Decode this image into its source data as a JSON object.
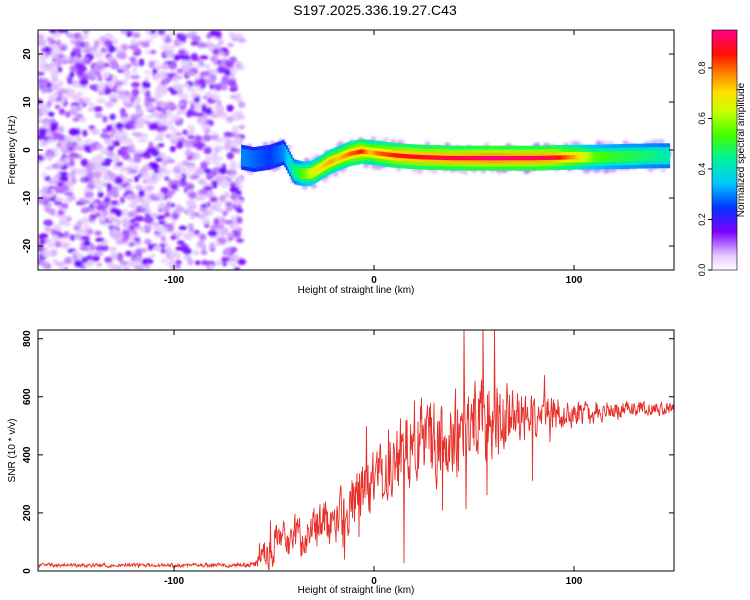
{
  "title": "S197.2025.336.19.27.C43",
  "chart_data": [
    {
      "type": "heatmap",
      "name": "spectrogram",
      "xlabel": "Height of straight line (km)",
      "ylabel": "Frequency (Hz)",
      "xlim": [
        -168,
        150
      ],
      "ylim": [
        -25,
        25
      ],
      "xticks": [
        -100,
        0,
        100
      ],
      "yticks": [
        -20,
        -10,
        0,
        10,
        20
      ],
      "colorbar": {
        "label": "Normalized spectral amplitude",
        "range": [
          0,
          0.95
        ],
        "ticks": [
          "0.0",
          "0.2",
          "0.4",
          "0.6",
          "0.8"
        ],
        "tick_values": [
          0,
          0.2,
          0.4,
          0.6,
          0.8
        ]
      },
      "noise_region_x": [
        -168,
        -68
      ],
      "ridge": {
        "x": [
          -66,
          -60,
          -52,
          -45,
          -40,
          -35,
          -31,
          -27,
          -22,
          -18,
          -12,
          -6,
          -2,
          2,
          6,
          10,
          16,
          24,
          32,
          40,
          50,
          60,
          70,
          80,
          90,
          100,
          110,
          120,
          130,
          140,
          148
        ],
        "freq": [
          -1.5,
          -2.0,
          -1.5,
          -0.5,
          -4.5,
          -5.0,
          -4.8,
          -3.8,
          -2.5,
          -1.8,
          -0.8,
          -0.3,
          -0.5,
          -0.7,
          -0.9,
          -1.1,
          -1.3,
          -1.5,
          -1.6,
          -1.7,
          -1.7,
          -1.7,
          -1.7,
          -1.7,
          -1.6,
          -1.5,
          -1.5,
          -1.4,
          -1.3,
          -1.2,
          -1.2
        ],
        "amplitude": [
          0.3,
          0.28,
          0.25,
          0.3,
          0.45,
          0.55,
          0.65,
          0.7,
          0.75,
          0.72,
          0.8,
          0.85,
          0.72,
          0.8,
          0.82,
          0.85,
          0.88,
          0.88,
          0.9,
          0.9,
          0.92,
          0.95,
          0.92,
          0.92,
          0.9,
          0.75,
          0.55,
          0.5,
          0.48,
          0.45,
          0.42
        ]
      }
    },
    {
      "type": "line",
      "name": "snr",
      "xlabel": "Height of straight line (km)",
      "ylabel": "SNR (10 * v/v)",
      "xlim": [
        -168,
        150
      ],
      "ylim": [
        0,
        830
      ],
      "xticks": [
        -100,
        0,
        100
      ],
      "yticks": [
        0,
        200,
        400,
        600,
        800
      ],
      "color": "#e8302a",
      "envelope": {
        "x": [
          -168,
          -130,
          -100,
          -70,
          -60,
          -55,
          -50,
          -40,
          -30,
          -20,
          -10,
          0,
          10,
          20,
          30,
          40,
          50,
          60,
          70,
          80,
          90,
          100,
          110,
          120,
          130,
          140,
          150
        ],
        "center": [
          20,
          20,
          20,
          20,
          22,
          60,
          90,
          110,
          140,
          180,
          240,
          300,
          380,
          440,
          460,
          480,
          500,
          520,
          530,
          540,
          540,
          545,
          550,
          555,
          560,
          560,
          560
        ],
        "spread": [
          10,
          10,
          10,
          10,
          12,
          80,
          100,
          110,
          120,
          130,
          150,
          170,
          200,
          220,
          230,
          230,
          220,
          200,
          160,
          120,
          90,
          70,
          60,
          50,
          40,
          35,
          30
        ]
      }
    }
  ]
}
